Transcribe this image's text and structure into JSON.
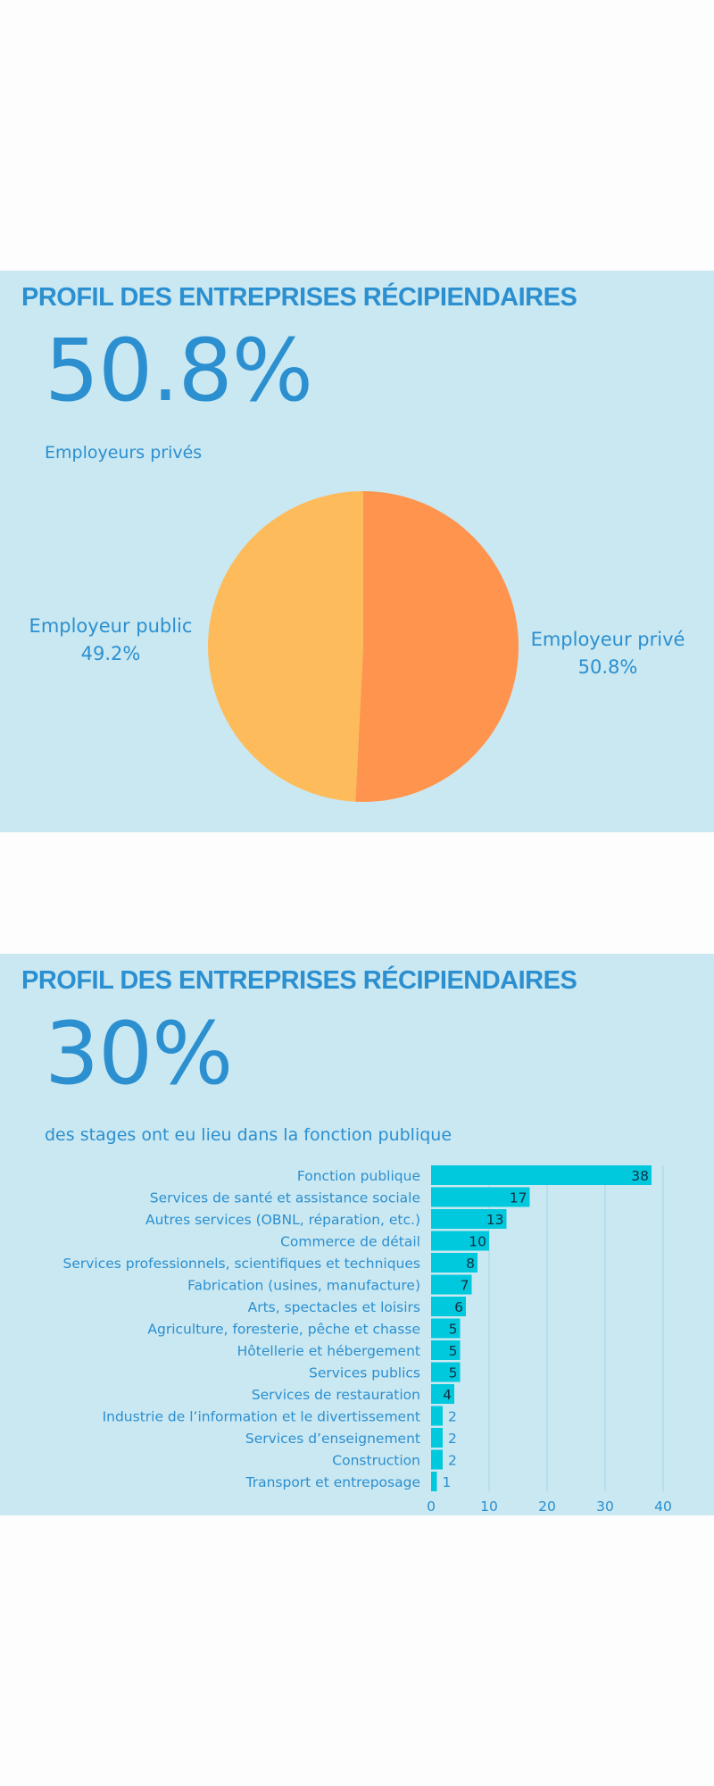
{
  "panel1": {
    "title": "PROFIL DES ENTREPRISES RÉCIPIENDAIRES",
    "big_number": "50.8%",
    "subtitle": "Employeurs privés"
  },
  "panel2": {
    "title": "PROFIL DES ENTREPRISES RÉCIPIENDAIRES",
    "big_number": "30%",
    "subtitle": "des stages ont eu lieu dans la fonction publique"
  },
  "chart_data": [
    {
      "type": "pie",
      "slices": [
        {
          "name": "Employeur privé",
          "value": 50.8,
          "label": "50.8%",
          "color": "#fe944d"
        },
        {
          "name": "Employeur public",
          "value": 49.2,
          "label": "49.2%",
          "color": "#fdbb5c"
        }
      ]
    },
    {
      "type": "bar",
      "orientation": "horizontal",
      "categories": [
        "Fonction publique",
        "Services de santé et assistance sociale",
        "Autres services (OBNL, réparation, etc.)",
        "Commerce de détail",
        "Services professionnels, scientifiques et techniques",
        "Fabrication (usines, manufacture)",
        "Arts, spectacles et loisirs",
        "Agriculture, foresterie, pêche et chasse",
        "Hôtellerie et hébergement",
        "Services publics",
        "Services de restauration",
        "Industrie de l’information et le divertissement",
        "Services d’enseignement",
        "Construction",
        "Transport et entreposage"
      ],
      "values": [
        38,
        17,
        13,
        10,
        8,
        7,
        6,
        5,
        5,
        5,
        4,
        2,
        2,
        2,
        1
      ],
      "xlim": [
        0,
        40
      ],
      "xticks": [
        0,
        10,
        20,
        30,
        40
      ],
      "grid": true,
      "bar_color": "#00c9de",
      "label_color": "#2b8fd0"
    }
  ]
}
